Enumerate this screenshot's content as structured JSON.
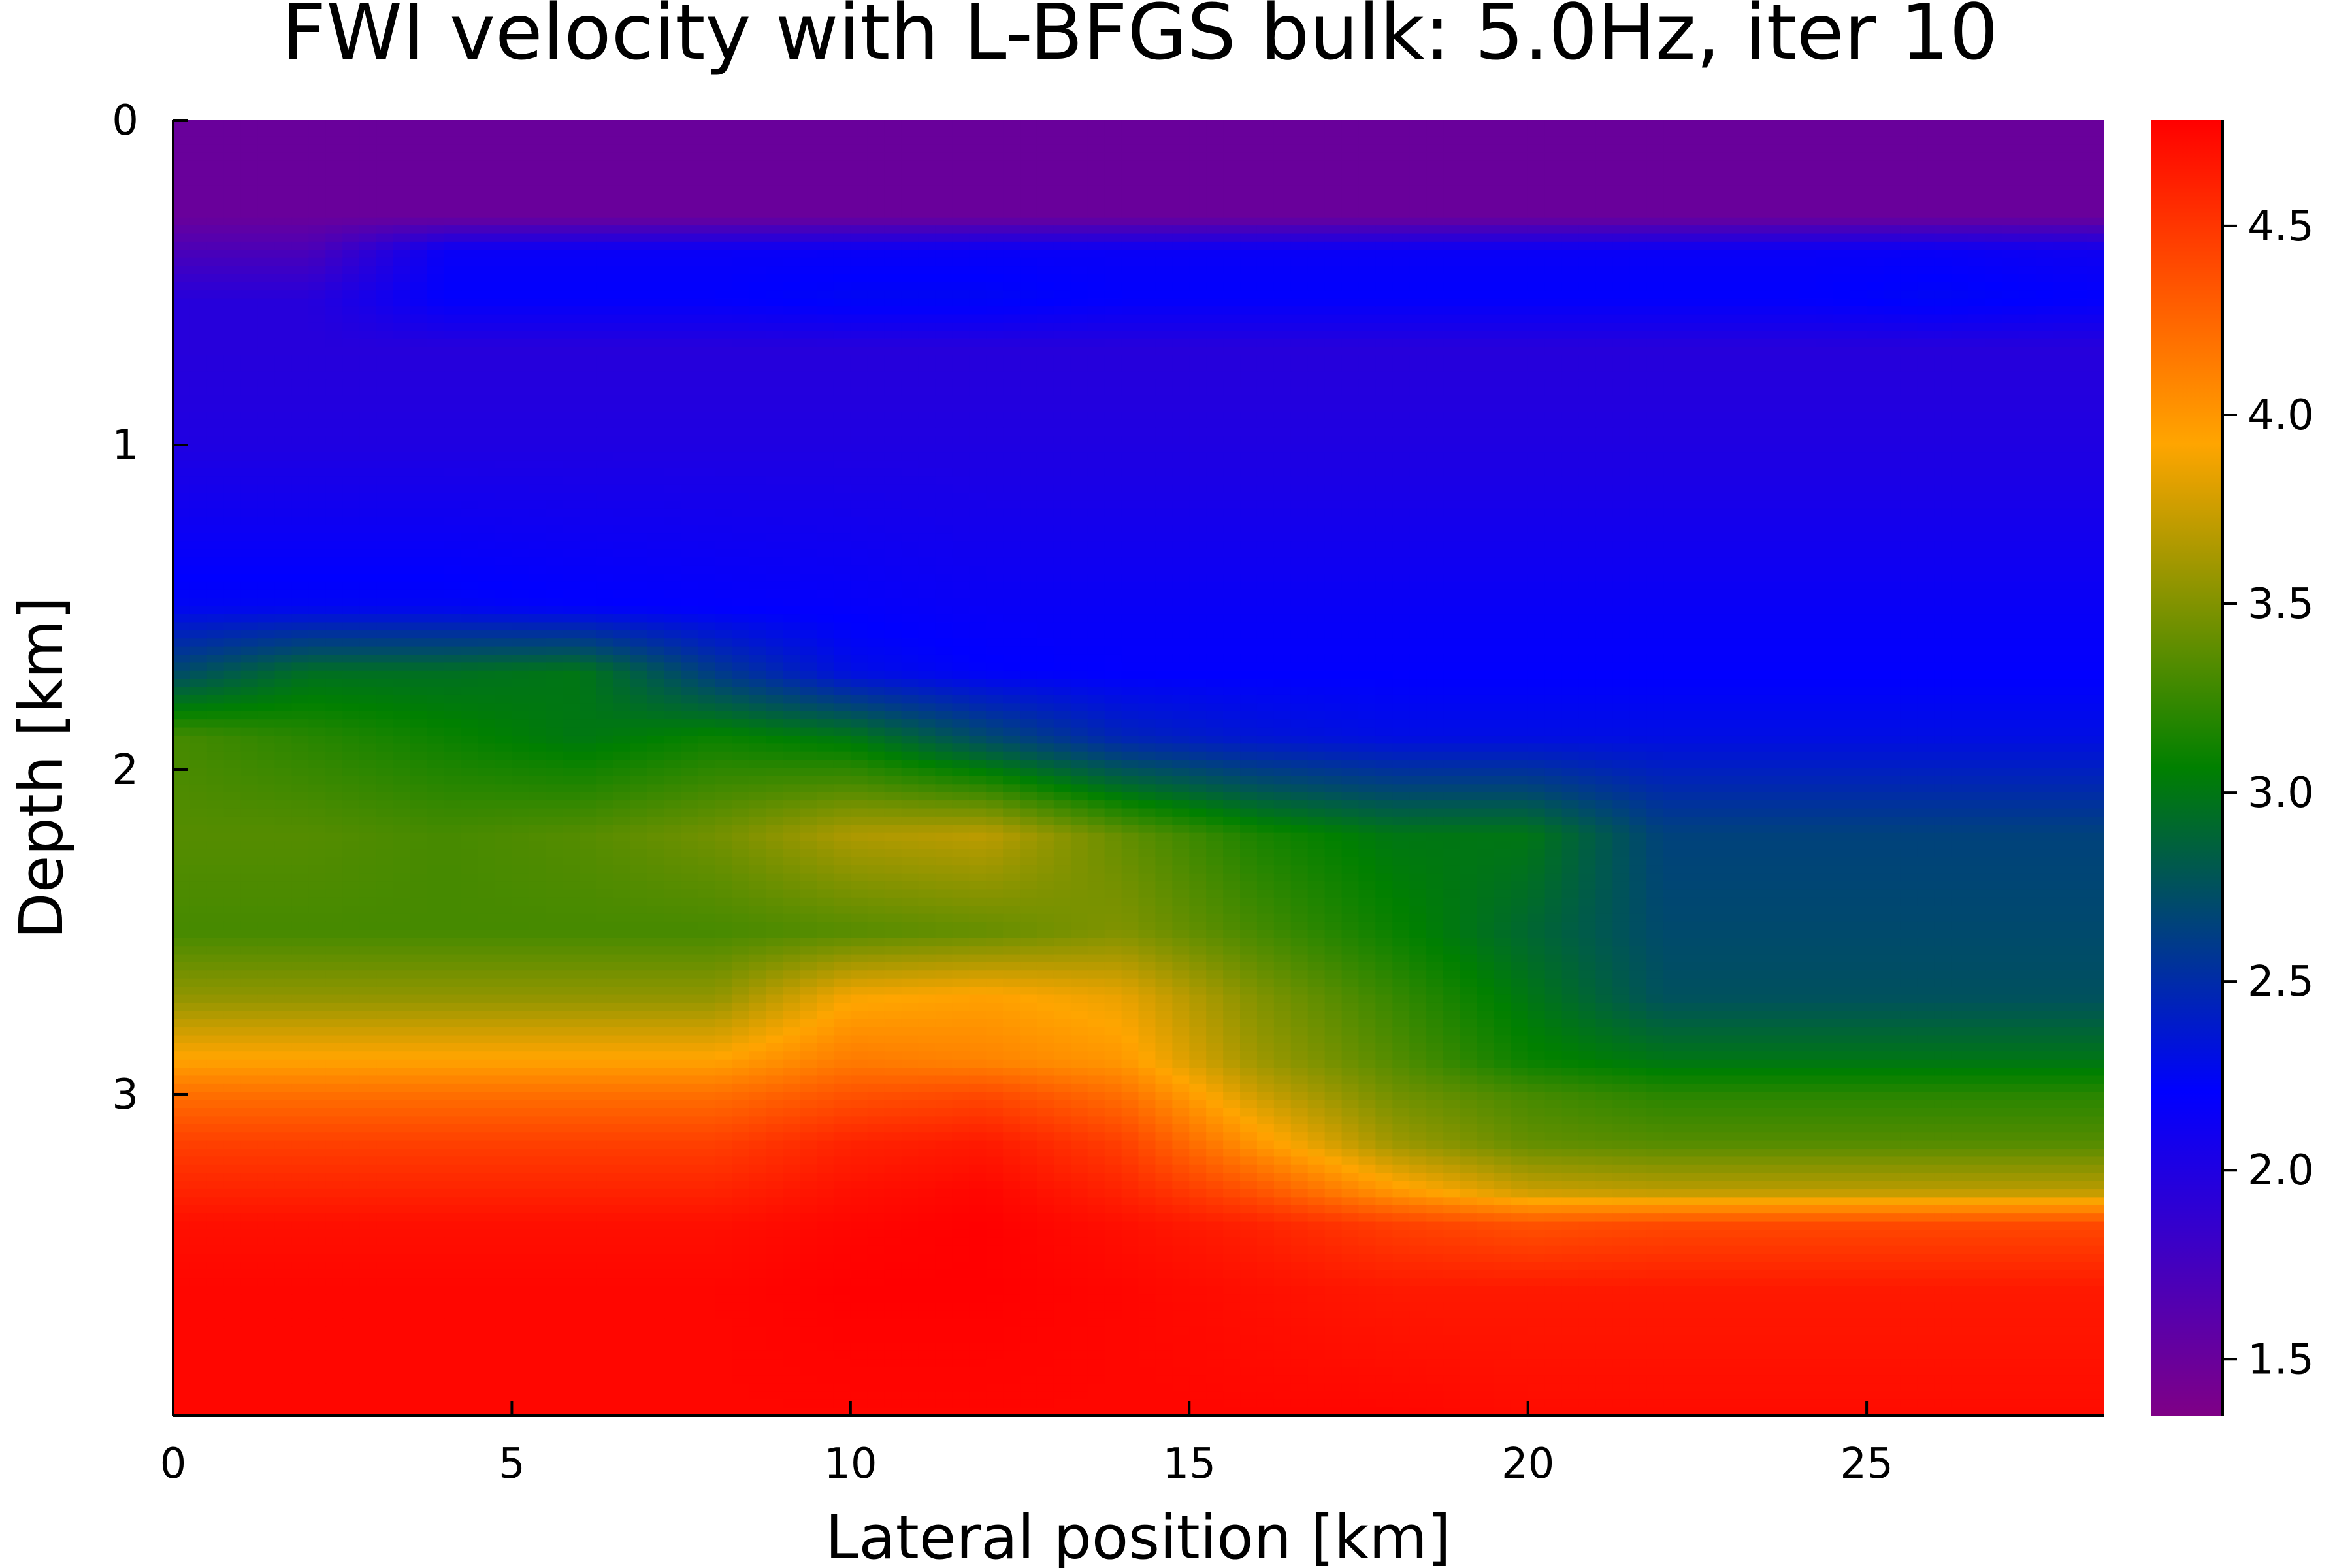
{
  "chart_data": {
    "type": "heatmap",
    "title": "FWI velocity with L-BFGS bulk: 5.0Hz, iter 10",
    "xlabel": "Lateral position [km]",
    "ylabel": "Depth [km]",
    "xlim": [
      0,
      28.5
    ],
    "ylim": [
      3.99,
      0
    ],
    "xticks": [
      0,
      5,
      10,
      15,
      20,
      25
    ],
    "yticks": [
      0,
      1,
      2,
      3
    ],
    "colorbar": {
      "range": [
        1.35,
        4.78
      ],
      "ticks": [
        1.5,
        2.0,
        2.5,
        3.0,
        3.5,
        4.0,
        4.5
      ],
      "tick_labels": [
        "1.5",
        "2.0",
        "2.5",
        "3.0",
        "3.5",
        "4.0",
        "4.5"
      ],
      "colormap": [
        "#7f0086",
        "#0000ff",
        "#008000",
        "#ffa500",
        "#ff0000"
      ]
    },
    "grid": false,
    "field": {
      "description_rows": "velocity in km/s sampled at x (km) for each depth z (km)",
      "x": [
        0,
        2,
        4,
        6,
        8,
        10,
        12,
        14,
        16,
        18,
        20,
        22,
        24,
        26,
        28.5
      ],
      "z": [
        0,
        0.3,
        0.4,
        0.55,
        0.7,
        1.0,
        1.5,
        1.7,
        1.9,
        2.2,
        2.5,
        2.7,
        2.9,
        3.0,
        3.15,
        3.3,
        3.4,
        3.6,
        3.99
      ],
      "v": [
        [
          1.5,
          1.5,
          1.5,
          1.5,
          1.5,
          1.5,
          1.5,
          1.5,
          1.5,
          1.5,
          1.5,
          1.5,
          1.5,
          1.5,
          1.5
        ],
        [
          1.5,
          1.5,
          1.5,
          1.5,
          1.5,
          1.5,
          1.5,
          1.5,
          1.5,
          1.5,
          1.5,
          1.5,
          1.5,
          1.5,
          1.5
        ],
        [
          1.7,
          1.7,
          2.15,
          2.15,
          2.15,
          2.15,
          2.15,
          2.15,
          2.15,
          2.15,
          2.15,
          2.15,
          2.15,
          2.15,
          2.1
        ],
        [
          1.95,
          1.95,
          2.2,
          2.2,
          2.2,
          2.25,
          2.25,
          2.2,
          2.2,
          2.2,
          2.2,
          2.2,
          2.2,
          2.25,
          2.2
        ],
        [
          1.95,
          1.95,
          1.95,
          1.95,
          1.95,
          1.95,
          1.95,
          1.95,
          1.95,
          1.95,
          1.95,
          1.95,
          1.95,
          1.95,
          1.95
        ],
        [
          2.0,
          2.0,
          2.0,
          2.0,
          2.0,
          2.0,
          2.0,
          2.0,
          2.0,
          2.0,
          2.0,
          2.0,
          2.0,
          2.0,
          2.0
        ],
        [
          2.25,
          2.25,
          2.25,
          2.22,
          2.2,
          2.18,
          2.15,
          2.15,
          2.15,
          2.15,
          2.15,
          2.15,
          2.15,
          2.15,
          2.15
        ],
        [
          2.7,
          2.95,
          2.95,
          3.0,
          2.6,
          2.3,
          2.22,
          2.2,
          2.2,
          2.2,
          2.2,
          2.2,
          2.2,
          2.2,
          2.2
        ],
        [
          3.3,
          3.2,
          3.1,
          3.0,
          3.1,
          3.0,
          2.7,
          2.45,
          2.35,
          2.3,
          2.3,
          2.3,
          2.3,
          2.3,
          2.3
        ],
        [
          3.35,
          3.35,
          3.3,
          3.35,
          3.45,
          3.65,
          3.7,
          3.4,
          3.15,
          3.0,
          3.0,
          2.65,
          2.65,
          2.65,
          2.65
        ],
        [
          3.3,
          3.3,
          3.3,
          3.3,
          3.3,
          3.35,
          3.4,
          3.5,
          3.3,
          3.1,
          2.9,
          2.7,
          2.7,
          2.7,
          2.7
        ],
        [
          3.55,
          3.55,
          3.55,
          3.55,
          3.55,
          3.9,
          3.95,
          3.85,
          3.5,
          3.25,
          3.0,
          2.75,
          2.75,
          2.75,
          2.75
        ],
        [
          3.95,
          3.95,
          3.95,
          3.95,
          3.95,
          4.15,
          4.1,
          4.0,
          3.6,
          3.35,
          3.1,
          3.0,
          3.0,
          3.0,
          3.0
        ],
        [
          4.2,
          4.2,
          4.2,
          4.2,
          4.2,
          4.35,
          4.4,
          4.2,
          3.75,
          3.45,
          3.3,
          3.2,
          3.2,
          3.2,
          3.2
        ],
        [
          4.45,
          4.45,
          4.45,
          4.45,
          4.45,
          4.6,
          4.65,
          4.45,
          4.0,
          3.6,
          3.4,
          3.35,
          3.35,
          3.35,
          3.35
        ],
        [
          4.6,
          4.6,
          4.6,
          4.6,
          4.6,
          4.7,
          4.75,
          4.6,
          4.35,
          4.0,
          3.75,
          3.7,
          3.7,
          3.7,
          3.7
        ],
        [
          4.7,
          4.7,
          4.7,
          4.7,
          4.7,
          4.75,
          4.78,
          4.7,
          4.6,
          4.45,
          4.35,
          4.4,
          4.4,
          4.4,
          4.4
        ],
        [
          4.75,
          4.75,
          4.75,
          4.75,
          4.75,
          4.78,
          4.78,
          4.75,
          4.7,
          4.65,
          4.65,
          4.65,
          4.65,
          4.65,
          4.65
        ],
        [
          4.75,
          4.75,
          4.75,
          4.75,
          4.75,
          4.75,
          4.75,
          4.75,
          4.75,
          4.75,
          4.72,
          4.72,
          4.72,
          4.72,
          4.72
        ]
      ]
    }
  }
}
